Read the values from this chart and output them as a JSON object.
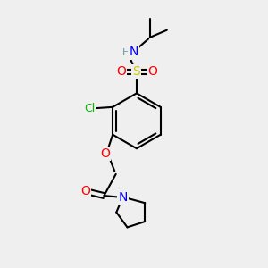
{
  "bg_color": "#efefef",
  "atom_colors": {
    "C": "#000000",
    "H": "#6699aa",
    "N": "#0000ff",
    "O": "#ff0000",
    "S": "#cccc00",
    "Cl": "#00bb00"
  },
  "bond_color": "#000000",
  "bond_width": 1.5,
  "font_size": 9
}
